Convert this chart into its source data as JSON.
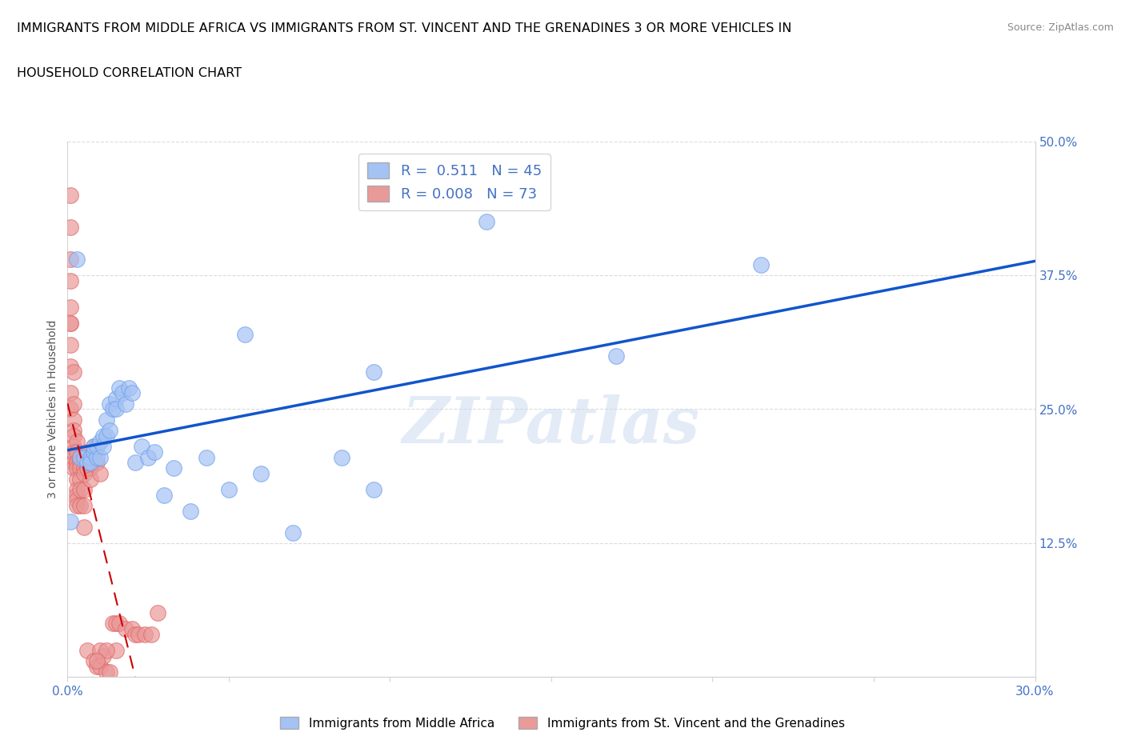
{
  "title_line1": "IMMIGRANTS FROM MIDDLE AFRICA VS IMMIGRANTS FROM ST. VINCENT AND THE GRENADINES 3 OR MORE VEHICLES IN",
  "title_line2": "HOUSEHOLD CORRELATION CHART",
  "source": "Source: ZipAtlas.com",
  "ylabel": "3 or more Vehicles in Household",
  "xlabel_blue": "Immigrants from Middle Africa",
  "xlabel_pink": "Immigrants from St. Vincent and the Grenadines",
  "r_blue": 0.511,
  "n_blue": 45,
  "r_pink": 0.008,
  "n_pink": 73,
  "xlim": [
    0.0,
    0.3
  ],
  "ylim": [
    0.0,
    0.5
  ],
  "xticks": [
    0.0,
    0.05,
    0.1,
    0.15,
    0.2,
    0.25,
    0.3
  ],
  "yticks": [
    0.0,
    0.125,
    0.25,
    0.375,
    0.5
  ],
  "ytick_labels_right": [
    "",
    "12.5%",
    "25.0%",
    "37.5%",
    "50.0%"
  ],
  "xtick_labels": [
    "0.0%",
    "",
    "",
    "",
    "",
    "",
    "30.0%"
  ],
  "blue_color": "#a4c2f4",
  "pink_color": "#ea9999",
  "blue_edge_color": "#6d9eeb",
  "pink_edge_color": "#e06666",
  "trendline_blue_color": "#1155cc",
  "trendline_pink_color": "#cc0000",
  "watermark": "ZIPatlas",
  "blue_x": [
    0.001,
    0.003,
    0.004,
    0.005,
    0.006,
    0.007,
    0.007,
    0.008,
    0.008,
    0.009,
    0.009,
    0.01,
    0.01,
    0.011,
    0.011,
    0.012,
    0.012,
    0.013,
    0.013,
    0.014,
    0.015,
    0.015,
    0.016,
    0.017,
    0.018,
    0.019,
    0.02,
    0.021,
    0.023,
    0.025,
    0.027,
    0.03,
    0.033,
    0.038,
    0.043,
    0.05,
    0.06,
    0.07,
    0.085,
    0.095,
    0.13,
    0.17,
    0.215,
    0.095,
    0.055
  ],
  "blue_y": [
    0.145,
    0.39,
    0.205,
    0.205,
    0.2,
    0.205,
    0.2,
    0.21,
    0.215,
    0.205,
    0.215,
    0.205,
    0.22,
    0.215,
    0.225,
    0.225,
    0.24,
    0.23,
    0.255,
    0.25,
    0.26,
    0.25,
    0.27,
    0.265,
    0.255,
    0.27,
    0.265,
    0.2,
    0.215,
    0.205,
    0.21,
    0.17,
    0.195,
    0.155,
    0.205,
    0.175,
    0.19,
    0.135,
    0.205,
    0.285,
    0.425,
    0.3,
    0.385,
    0.175,
    0.32
  ],
  "pink_x": [
    0.001,
    0.001,
    0.001,
    0.001,
    0.001,
    0.001,
    0.001,
    0.001,
    0.001,
    0.001,
    0.001,
    0.002,
    0.002,
    0.002,
    0.002,
    0.002,
    0.002,
    0.002,
    0.002,
    0.002,
    0.002,
    0.003,
    0.003,
    0.003,
    0.003,
    0.003,
    0.003,
    0.003,
    0.003,
    0.003,
    0.004,
    0.004,
    0.004,
    0.004,
    0.004,
    0.004,
    0.005,
    0.005,
    0.005,
    0.005,
    0.005,
    0.005,
    0.006,
    0.006,
    0.006,
    0.006,
    0.007,
    0.007,
    0.007,
    0.008,
    0.008,
    0.008,
    0.009,
    0.009,
    0.01,
    0.01,
    0.011,
    0.012,
    0.013,
    0.014,
    0.015,
    0.016,
    0.018,
    0.02,
    0.021,
    0.022,
    0.024,
    0.026,
    0.028,
    0.015,
    0.01,
    0.012,
    0.009
  ],
  "pink_y": [
    0.45,
    0.42,
    0.39,
    0.37,
    0.345,
    0.33,
    0.33,
    0.31,
    0.29,
    0.265,
    0.25,
    0.285,
    0.255,
    0.24,
    0.23,
    0.225,
    0.215,
    0.205,
    0.2,
    0.21,
    0.195,
    0.22,
    0.21,
    0.2,
    0.195,
    0.185,
    0.175,
    0.17,
    0.165,
    0.16,
    0.205,
    0.2,
    0.195,
    0.185,
    0.175,
    0.16,
    0.2,
    0.195,
    0.19,
    0.175,
    0.16,
    0.14,
    0.21,
    0.205,
    0.195,
    0.025,
    0.2,
    0.195,
    0.185,
    0.215,
    0.205,
    0.015,
    0.2,
    0.01,
    0.19,
    0.01,
    0.02,
    0.005,
    0.005,
    0.05,
    0.05,
    0.05,
    0.045,
    0.045,
    0.04,
    0.04,
    0.04,
    0.04,
    0.06,
    0.025,
    0.025,
    0.025,
    0.015
  ]
}
